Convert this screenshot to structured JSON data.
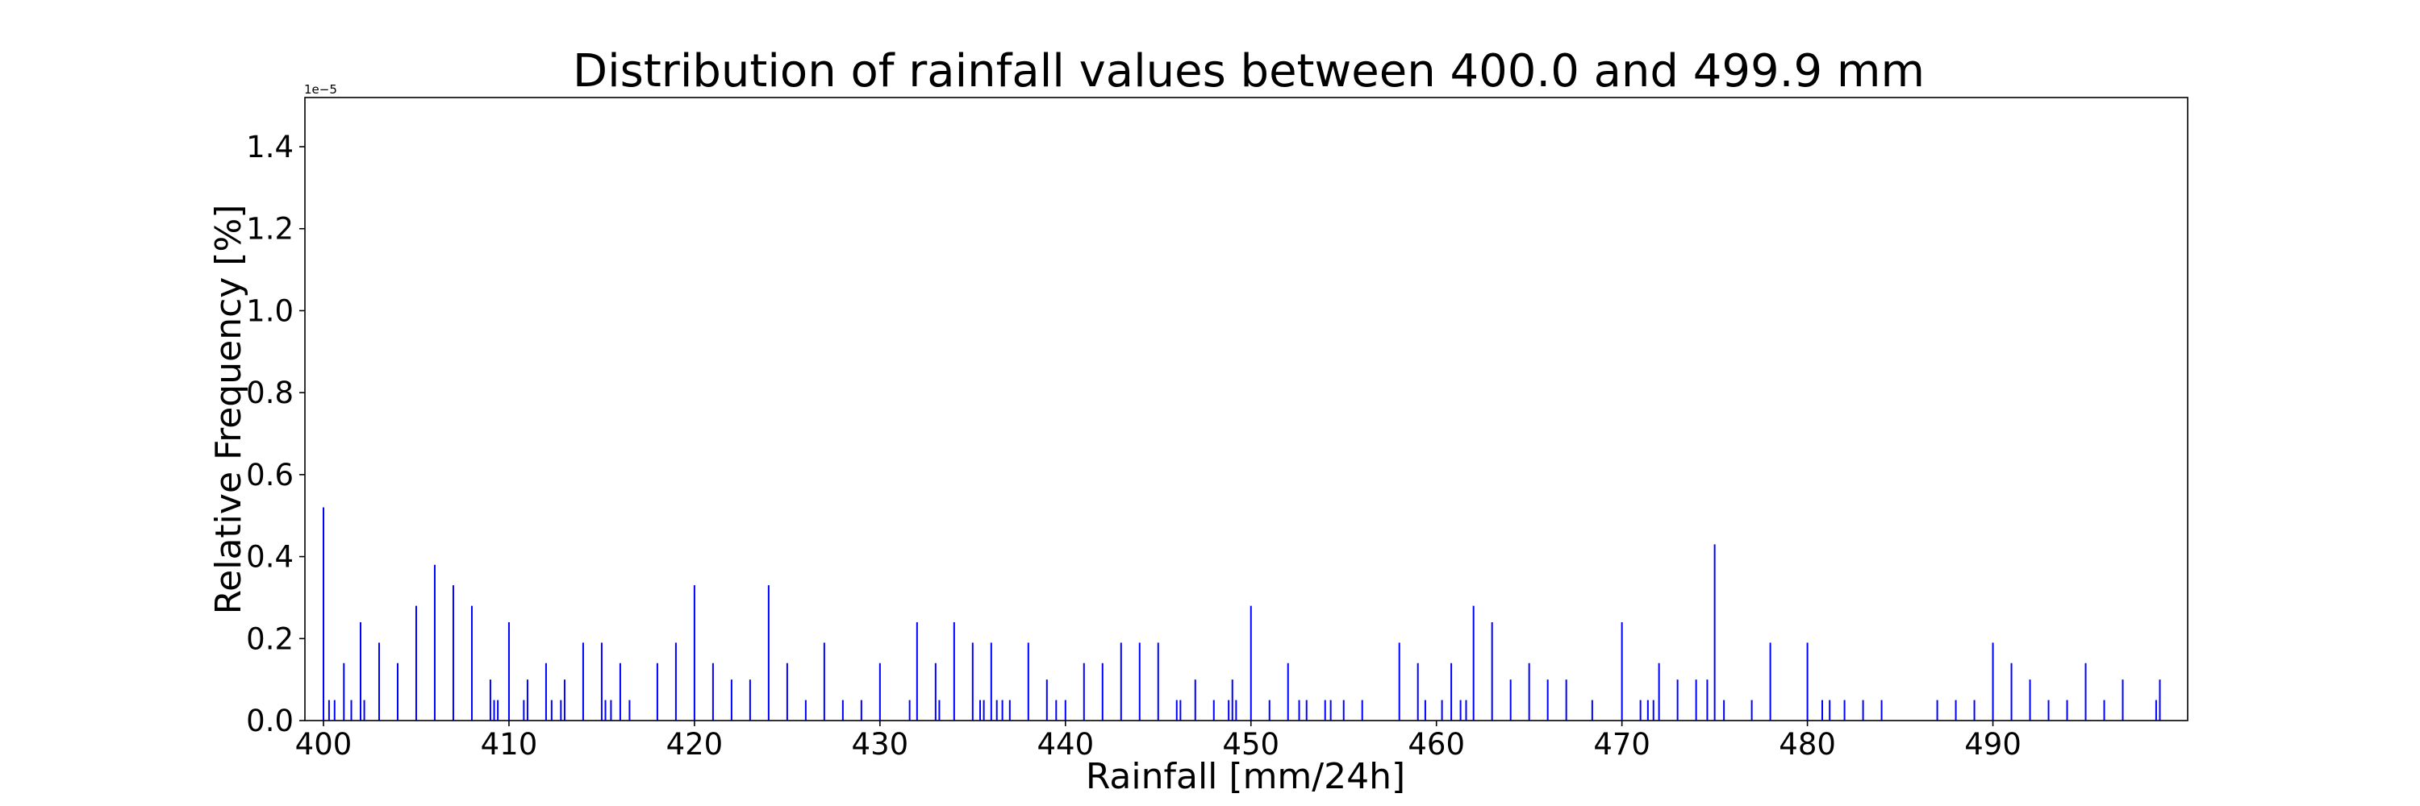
{
  "chart_data": {
    "type": "bar",
    "title": "Distribution of rainfall values between 400.0 and 499.9 mm",
    "xlabel": "Rainfall [mm/24h]",
    "ylabel": "Relative Frequency [%]",
    "y_offset_label": "1e−5",
    "xlim": [
      399.0,
      500.5
    ],
    "ylim": [
      0.0,
      1.52
    ],
    "xticks": [
      400,
      410,
      420,
      430,
      440,
      450,
      460,
      470,
      480,
      490
    ],
    "xtick_labels": [
      "400",
      "410",
      "420",
      "430",
      "440",
      "450",
      "460",
      "470",
      "480",
      "490"
    ],
    "yticks": [
      0.0,
      0.2,
      0.4,
      0.6,
      0.8,
      1.0,
      1.2,
      1.4
    ],
    "ytick_labels": [
      "0.0",
      "0.2",
      "0.4",
      "0.6",
      "0.8",
      "1.0",
      "1.2",
      "1.4"
    ],
    "grid": false,
    "bar_color": "#0000ff",
    "x": [
      400.0,
      400.3,
      400.6,
      401.1,
      401.5,
      402.0,
      402.2,
      403.0,
      404.0,
      405.0,
      406.0,
      407.0,
      408.0,
      409.0,
      409.2,
      409.4,
      410.0,
      410.8,
      411.0,
      412.0,
      412.3,
      412.8,
      413.0,
      414.0,
      415.0,
      415.2,
      415.5,
      416.0,
      416.5,
      418.0,
      419.0,
      420.0,
      421.0,
      422.0,
      423.0,
      424.0,
      425.0,
      426.0,
      427.0,
      428.0,
      429.0,
      430.0,
      431.6,
      432.0,
      433.0,
      433.2,
      434.0,
      435.0,
      435.4,
      435.6,
      436.0,
      436.3,
      436.6,
      437.0,
      438.0,
      439.0,
      439.5,
      440.0,
      441.0,
      442.0,
      443.0,
      444.0,
      445.0,
      446.0,
      446.2,
      447.0,
      448.0,
      448.8,
      449.0,
      449.2,
      450.0,
      451.0,
      452.0,
      452.6,
      453.0,
      454.0,
      454.3,
      455.0,
      456.0,
      458.0,
      459.0,
      459.4,
      460.3,
      460.8,
      461.3,
      461.6,
      462.0,
      463.0,
      464.0,
      465.0,
      466.0,
      467.0,
      468.4,
      470.0,
      471.0,
      471.4,
      471.7,
      472.0,
      473.0,
      474.0,
      474.6,
      475.0,
      475.5,
      477.0,
      478.0,
      480.0,
      480.8,
      481.2,
      482.0,
      483.0,
      484.0,
      487.0,
      488.0,
      489.0,
      490.0,
      491.0,
      492.0,
      493.0,
      494.0,
      495.0,
      496.0,
      497.0,
      498.8,
      499.0
    ],
    "values": [
      0.52,
      0.05,
      0.05,
      0.14,
      0.05,
      0.24,
      0.05,
      0.19,
      0.14,
      0.28,
      0.38,
      0.33,
      0.28,
      0.1,
      0.05,
      0.05,
      0.24,
      0.05,
      0.1,
      0.14,
      0.05,
      0.05,
      0.1,
      0.19,
      0.19,
      0.05,
      0.05,
      0.14,
      0.05,
      0.14,
      0.19,
      0.33,
      0.14,
      0.1,
      0.1,
      0.33,
      0.14,
      0.05,
      0.19,
      0.05,
      0.05,
      0.14,
      0.05,
      0.24,
      0.14,
      0.05,
      0.24,
      0.19,
      0.05,
      0.05,
      0.19,
      0.05,
      0.05,
      0.05,
      0.19,
      0.1,
      0.05,
      0.05,
      0.14,
      0.14,
      0.19,
      0.19,
      0.19,
      0.05,
      0.05,
      0.1,
      0.05,
      0.05,
      0.1,
      0.05,
      0.28,
      0.05,
      0.14,
      0.05,
      0.05,
      0.05,
      0.05,
      0.05,
      0.05,
      0.19,
      0.14,
      0.05,
      0.05,
      0.14,
      0.05,
      0.05,
      0.28,
      0.24,
      0.1,
      0.14,
      0.1,
      0.1,
      0.05,
      0.24,
      0.05,
      0.05,
      0.05,
      0.14,
      0.1,
      0.1,
      0.1,
      0.43,
      0.05,
      0.05,
      0.19,
      0.19,
      0.05,
      0.05,
      0.05,
      0.05,
      0.05,
      0.05,
      0.05,
      0.05,
      0.19,
      0.14,
      0.1,
      0.05,
      0.05,
      0.14,
      0.05,
      0.1,
      0.05,
      0.1
    ]
  }
}
